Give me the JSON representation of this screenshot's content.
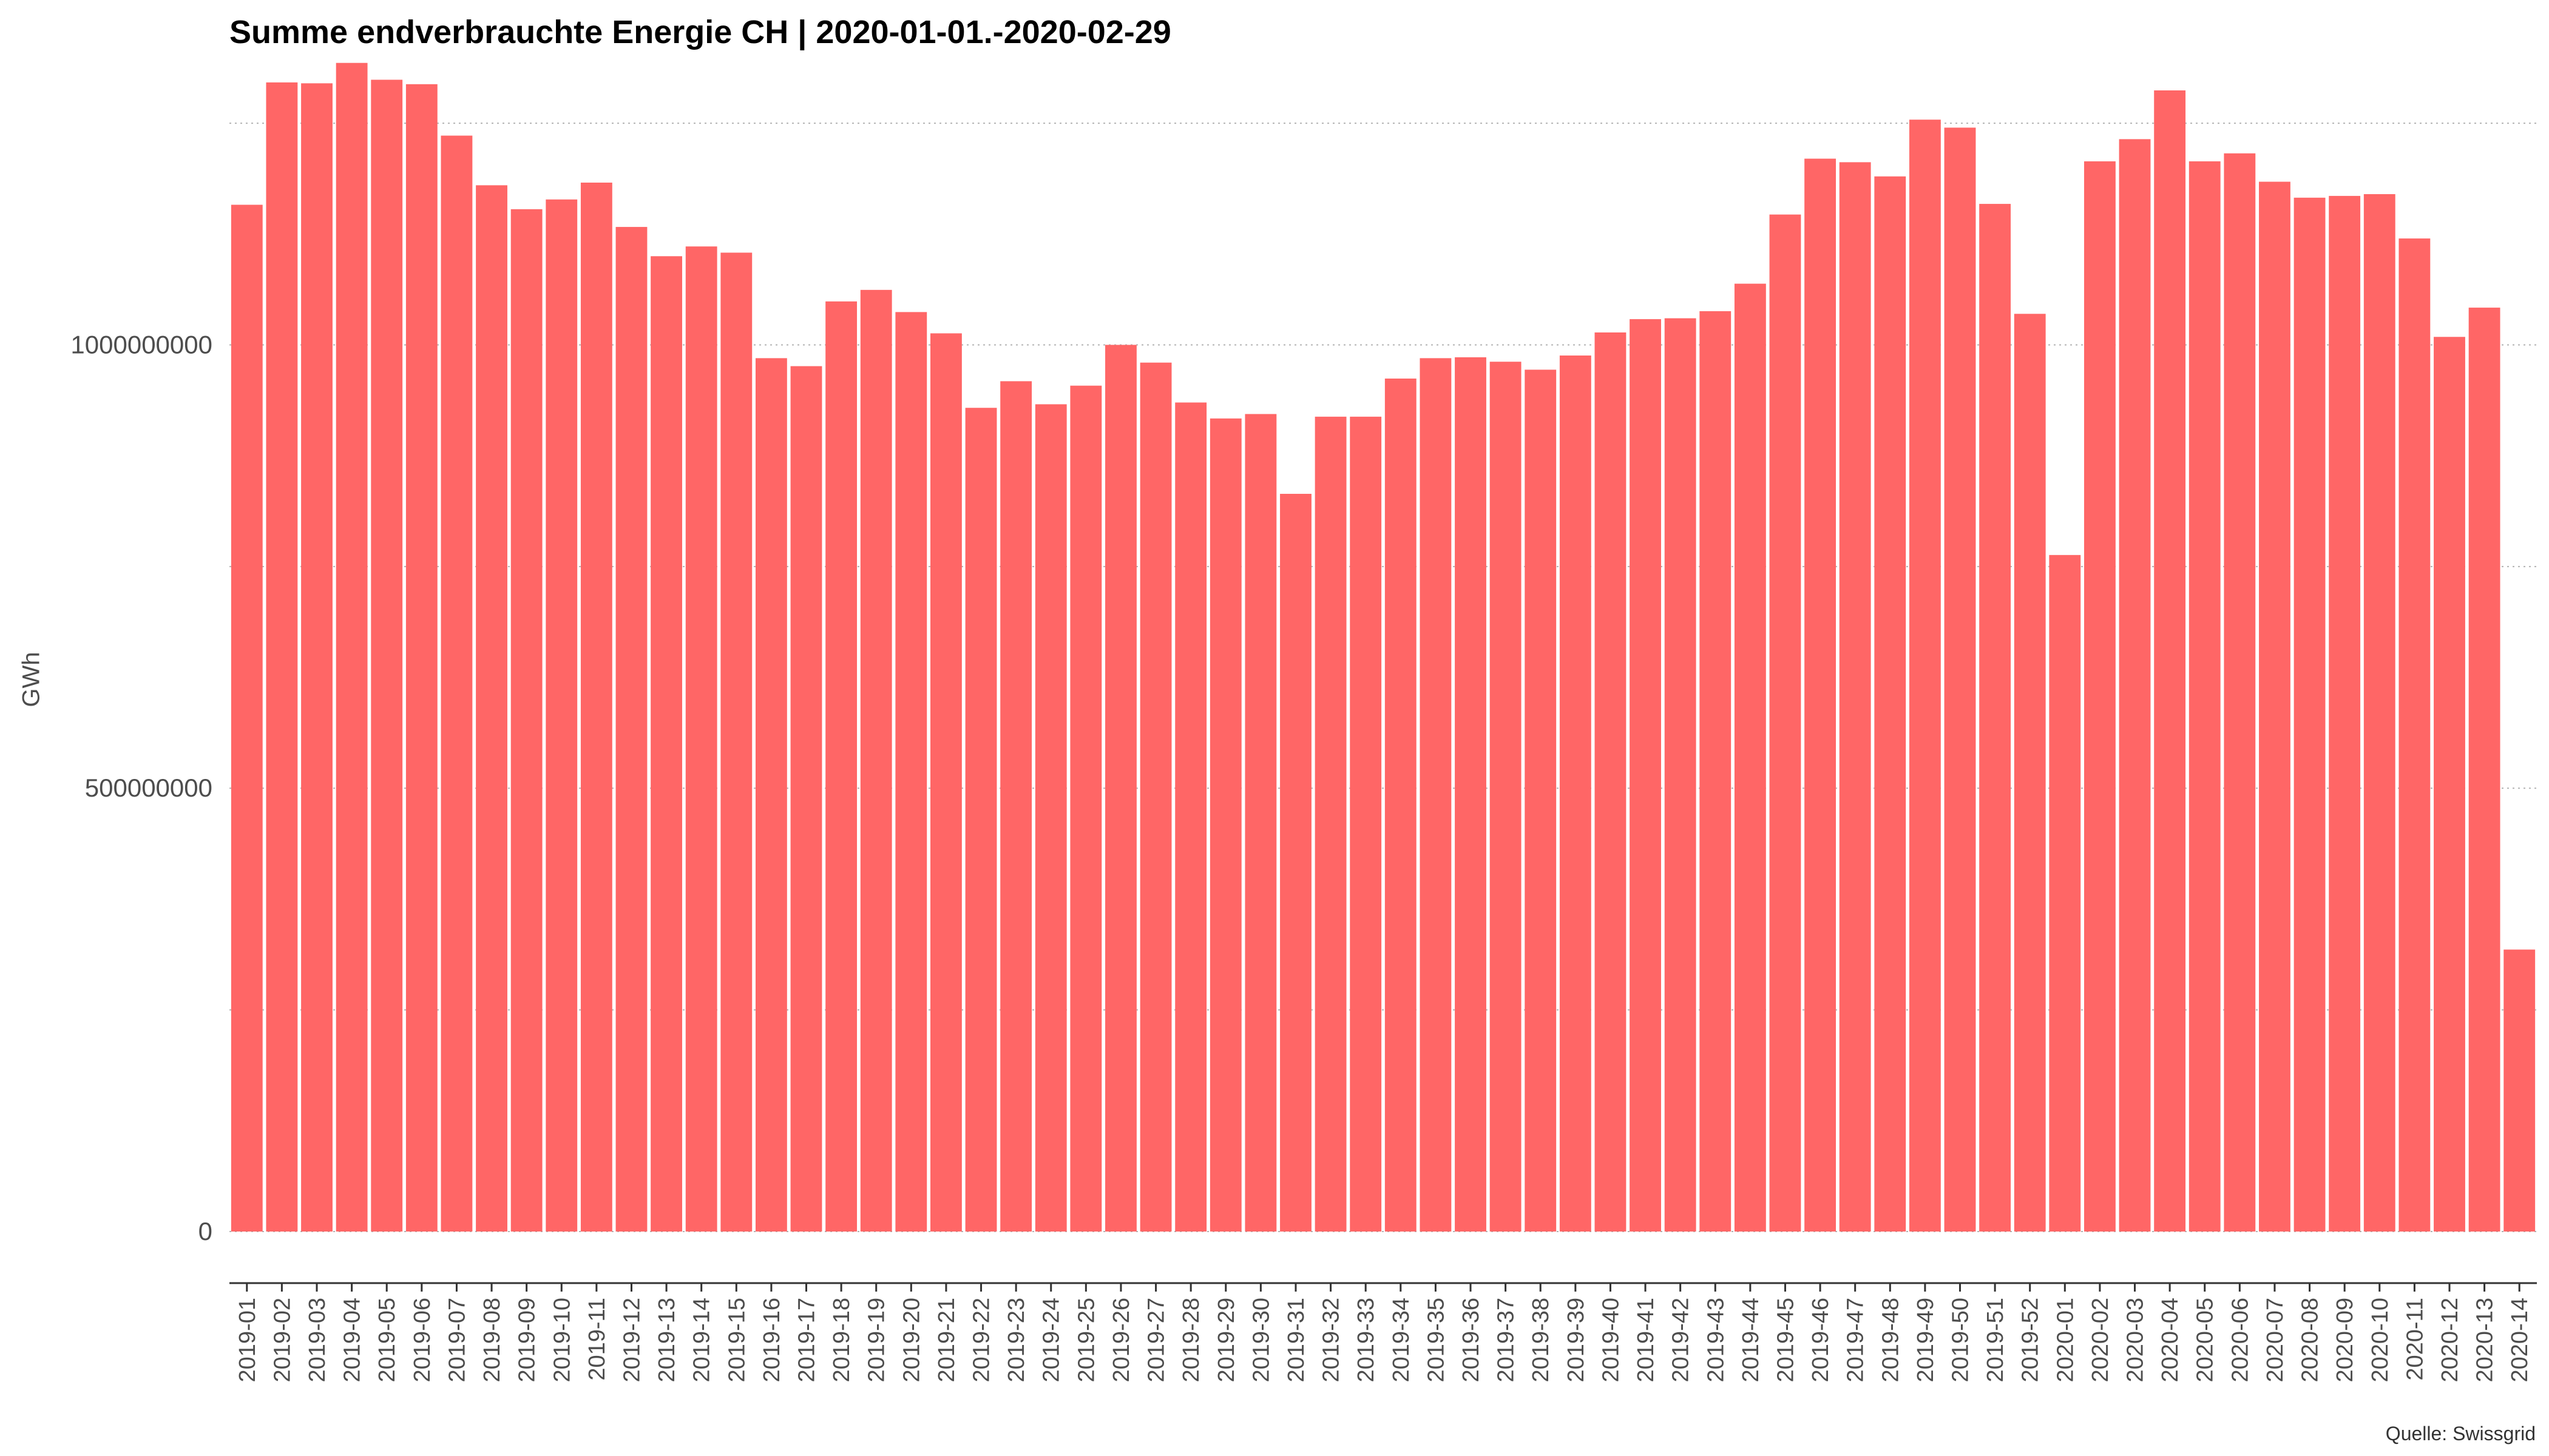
{
  "chart_data": {
    "type": "bar",
    "title": "Summe endverbrauchte Energie CH | 2020-01-01.-2020-02-29",
    "xlabel": "",
    "ylabel": "GWh",
    "ylim": [
      0,
      1300000000
    ],
    "yticks": [
      0,
      500000000,
      1000000000
    ],
    "ytick_labels": [
      "0",
      "500000000",
      "1000000000"
    ],
    "grid": true,
    "legend": "none",
    "bar_color": "#FF6666",
    "caption": "Quelle: Swissgrid",
    "categories": [
      "2019-01",
      "2019-02",
      "2019-03",
      "2019-04",
      "2019-05",
      "2019-06",
      "2019-07",
      "2019-08",
      "2019-09",
      "2019-10",
      "2019-11",
      "2019-12",
      "2019-13",
      "2019-14",
      "2019-15",
      "2019-16",
      "2019-17",
      "2019-18",
      "2019-19",
      "2019-20",
      "2019-21",
      "2019-22",
      "2019-23",
      "2019-24",
      "2019-25",
      "2019-26",
      "2019-27",
      "2019-28",
      "2019-29",
      "2019-30",
      "2019-31",
      "2019-32",
      "2019-33",
      "2019-34",
      "2019-35",
      "2019-36",
      "2019-37",
      "2019-38",
      "2019-39",
      "2019-40",
      "2019-41",
      "2019-42",
      "2019-43",
      "2019-44",
      "2019-45",
      "2019-46",
      "2019-47",
      "2019-48",
      "2019-49",
      "2019-50",
      "2019-51",
      "2019-52",
      "2020-01",
      "2020-02",
      "2020-03",
      "2020-04",
      "2020-05",
      "2020-06",
      "2020-07",
      "2020-08",
      "2020-09",
      "2020-10",
      "2020-11",
      "2020-12",
      "2020-13",
      "2020-14"
    ],
    "values": [
      1158000000,
      1296000000,
      1295000000,
      1318000000,
      1299000000,
      1294000000,
      1236000000,
      1180000000,
      1153000000,
      1164000000,
      1183000000,
      1133000000,
      1100000000,
      1111000000,
      1104000000,
      985000000,
      976000000,
      1049000000,
      1062000000,
      1037000000,
      1013000000,
      929000000,
      959000000,
      933000000,
      954000000,
      1000000000,
      980000000,
      935000000,
      917000000,
      922000000,
      832000000,
      919000000,
      919000000,
      962000000,
      985000000,
      986000000,
      981000000,
      972000000,
      988000000,
      1014000000,
      1029000000,
      1030000000,
      1038000000,
      1069000000,
      1147000000,
      1210000000,
      1206000000,
      1190000000,
      1254000000,
      1245000000,
      1159000000,
      1035000000,
      763000000,
      1207000000,
      1232000000,
      1287000000,
      1207000000,
      1216000000,
      1184000000,
      1166000000,
      1168000000,
      1170000000,
      1120000000,
      1009000000,
      1042000000,
      318000000
    ]
  }
}
